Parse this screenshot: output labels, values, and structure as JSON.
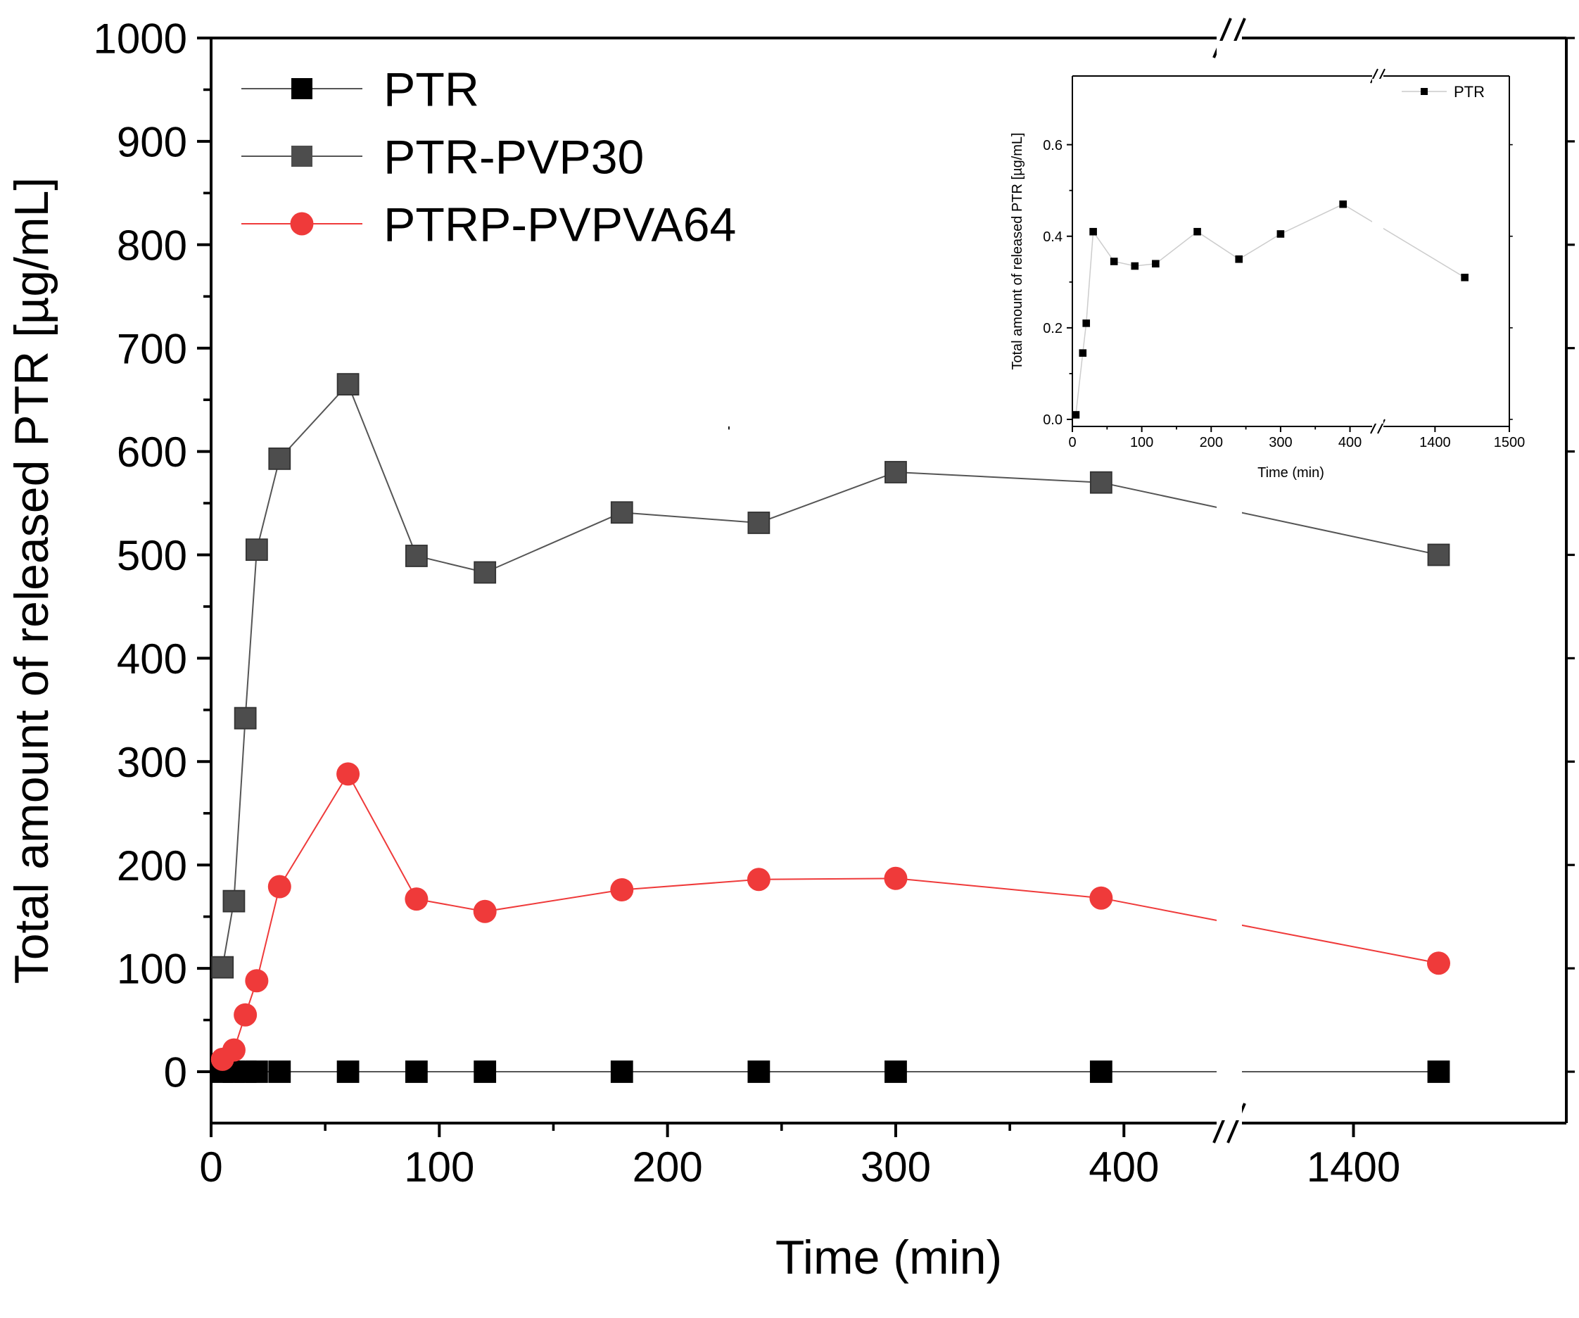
{
  "chart_data": [
    {
      "type": "line",
      "name": "main",
      "xlabel": "Time (min)",
      "ylabel": "Total amount of released PTR [µg/mL]",
      "ylim": [
        0,
        1000
      ],
      "x_break": {
        "lower_range": [
          0,
          440
        ],
        "upper_range": [
          1340,
          1500
        ]
      },
      "x_ticks": [
        0,
        100,
        200,
        300,
        400,
        1400
      ],
      "x_tick_labels": [
        "0",
        "100",
        "200",
        "300",
        "400",
        "1400"
      ],
      "y_ticks": [
        0,
        100,
        200,
        300,
        400,
        500,
        600,
        700,
        800,
        900,
        1000
      ],
      "y_tick_labels": [
        "0",
        "100",
        "200",
        "300",
        "400",
        "500",
        "600",
        "700",
        "800",
        "900",
        "1000"
      ],
      "legend_position": "top-left",
      "series": [
        {
          "name": "PTR",
          "color": "#000000",
          "line_color": "#555555",
          "marker": "square",
          "x": [
            5,
            10,
            15,
            20,
            30,
            60,
            90,
            120,
            180,
            240,
            300,
            390,
            1440
          ],
          "values": [
            0,
            0,
            0,
            0,
            0,
            0,
            0,
            0,
            0,
            0,
            0,
            0,
            0
          ]
        },
        {
          "name": "PTR-PVP30",
          "color": "#4d4d4d",
          "line_color": "#555555",
          "marker": "square",
          "x": [
            5,
            10,
            15,
            20,
            30,
            60,
            90,
            120,
            180,
            240,
            300,
            390,
            1440
          ],
          "values": [
            101,
            165,
            342,
            505,
            593,
            665,
            499,
            483,
            541,
            531,
            580,
            570,
            500
          ]
        },
        {
          "name": "PTRP-PVPVA64",
          "color": "#ef3a3a",
          "line_color": "#ef3a3a",
          "marker": "circle",
          "x": [
            5,
            10,
            15,
            20,
            30,
            60,
            90,
            120,
            180,
            240,
            300,
            390,
            1440
          ],
          "values": [
            12,
            21,
            55,
            88,
            179,
            288,
            167,
            155,
            176,
            186,
            187,
            168,
            105
          ]
        }
      ]
    },
    {
      "type": "line",
      "name": "inset",
      "xlabel": "Time (min)",
      "ylabel": "Total amount of released PTR [µg/mL]",
      "ylim": [
        0,
        0.75
      ],
      "x_break": {
        "lower_range": [
          0,
          440
        ],
        "upper_range": [
          1340,
          1500
        ]
      },
      "x_ticks": [
        0,
        100,
        200,
        300,
        400,
        1400,
        1500
      ],
      "x_tick_labels": [
        "0",
        "100",
        "200",
        "300",
        "400",
        "1400",
        "1500"
      ],
      "y_ticks": [
        0,
        0.2,
        0.4,
        0.6
      ],
      "y_tick_labels": [
        "0.0",
        "0.2",
        "0.4",
        "0.6"
      ],
      "legend_position": "top-right",
      "series": [
        {
          "name": "PTR",
          "color": "#000000",
          "line_color": "#cccccc",
          "marker": "square",
          "x": [
            5,
            15,
            20,
            30,
            60,
            90,
            120,
            180,
            240,
            300,
            390,
            1440
          ],
          "values": [
            0.01,
            0.145,
            0.21,
            0.41,
            0.345,
            0.335,
            0.34,
            0.41,
            0.35,
            0.405,
            0.47,
            0.31
          ]
        }
      ]
    }
  ]
}
